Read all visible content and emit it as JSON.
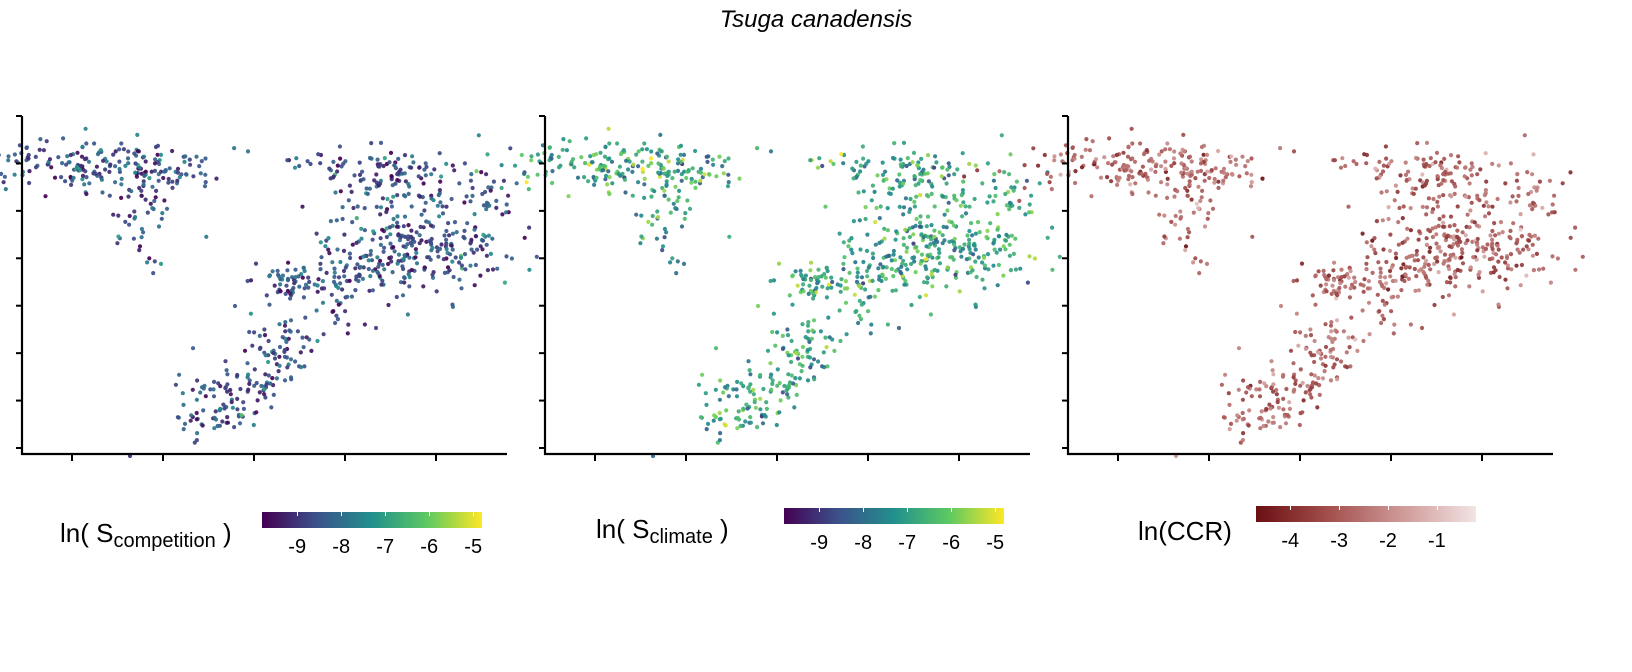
{
  "title": "Tsuga canadensis",
  "chart_data": [
    {
      "type": "scatter",
      "panel": "competition",
      "legend_label": {
        "prefix": "ln( S",
        "subscript": "competition",
        "suffix": " )"
      },
      "color_scale": {
        "name": "viridis",
        "range": [
          -9.8,
          -4.8
        ],
        "stops": [
          "#440154",
          "#3b528b",
          "#21908d",
          "#5dc962",
          "#fde725"
        ],
        "ticks": [
          -9,
          -8,
          -7,
          -6,
          -5
        ],
        "tick_labels": [
          "-9",
          "-8",
          "-7",
          "-6",
          "-5"
        ]
      },
      "value_center": -8.6,
      "value_spread": 0.7
    },
    {
      "type": "scatter",
      "panel": "climate",
      "legend_label": {
        "prefix": "ln( S",
        "subscript": "climate",
        "suffix": " )"
      },
      "color_scale": {
        "name": "viridis",
        "range": [
          -9.8,
          -4.8
        ],
        "stops": [
          "#440154",
          "#3b528b",
          "#21908d",
          "#5dc962",
          "#fde725"
        ],
        "ticks": [
          -9,
          -8,
          -7,
          -6,
          -5
        ],
        "tick_labels": [
          "-9",
          "-8",
          "-7",
          "-6",
          "-5"
        ]
      },
      "value_center": -6.9,
      "value_spread": 0.8
    },
    {
      "type": "scatter",
      "panel": "ccr",
      "legend_label": {
        "prefix": "ln(CCR)",
        "subscript": "",
        "suffix": ""
      },
      "color_scale": {
        "name": "red-white",
        "range": [
          -4.7,
          -0.2
        ],
        "stops": [
          "#6b0f12",
          "#a3504f",
          "#cf9a98",
          "#f2e4e4"
        ],
        "ticks": [
          -4,
          -3,
          -2,
          -1
        ],
        "tick_labels": [
          "-4",
          "-3",
          "-2",
          "-1"
        ]
      },
      "value_center": -2.8,
      "value_spread": 0.7
    }
  ],
  "axes": {
    "x_ticks": 5,
    "y_ticks": 8,
    "tick_labels_shown": false,
    "grid": false
  }
}
